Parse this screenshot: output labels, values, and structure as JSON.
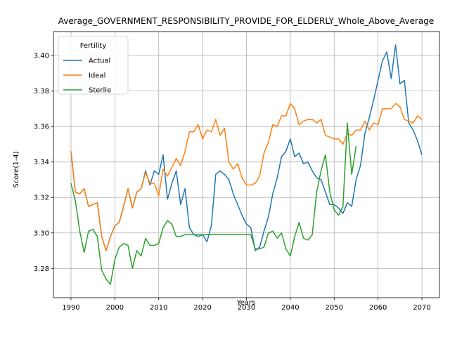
{
  "chart_data": {
    "type": "line",
    "title": "Average_GOVERNMENT_RESPONSIBILITY_PROVIDE_FOR_ELDERLY_Whole_Above_Average",
    "xlabel": "Years",
    "ylabel": "Score(1-4)",
    "xlim": [
      1986,
      2074
    ],
    "ylim": [
      3.2635,
      3.4135
    ],
    "x_ticks": [
      1990,
      2000,
      2010,
      2020,
      2030,
      2040,
      2050,
      2060,
      2070
    ],
    "y_ticks": [
      3.28,
      3.3,
      3.32,
      3.34,
      3.36,
      3.38,
      3.4
    ],
    "y_tick_labels": [
      "3.28",
      "3.30",
      "3.32",
      "3.34",
      "3.36",
      "3.38",
      "3.40"
    ],
    "grid": true,
    "legend": {
      "title": "Fertility",
      "placement": "upper-left"
    },
    "series": [
      {
        "name": "Actual",
        "color": "#1f77b4",
        "x": [
          1990,
          1991,
          1992,
          1993,
          1994,
          1995,
          1996,
          1997,
          1998,
          1999,
          2000,
          2001,
          2002,
          2003,
          2004,
          2005,
          2006,
          2007,
          2008,
          2009,
          2010,
          2011,
          2012,
          2013,
          2014,
          2015,
          2016,
          2017,
          2018,
          2019,
          2020,
          2021,
          2022,
          2023,
          2024,
          2025,
          2026,
          2027,
          2028,
          2029,
          2030,
          2031,
          2032,
          2033,
          2034,
          2035,
          2036,
          2037,
          2038,
          2039,
          2040,
          2041,
          2042,
          2043,
          2044,
          2045,
          2046,
          2047,
          2048,
          2049,
          2050,
          2051,
          2052,
          2053,
          2054,
          2055,
          2056,
          2057,
          2058,
          2059,
          2060,
          2061,
          2062,
          2063,
          2064,
          2065,
          2066,
          2067,
          2068,
          2069,
          2070
        ],
        "values": [
          3.346,
          3.323,
          3.322,
          3.325,
          3.315,
          3.316,
          3.317,
          3.298,
          3.29,
          3.298,
          3.304,
          3.306,
          3.315,
          3.325,
          3.314,
          3.323,
          3.325,
          3.335,
          3.327,
          3.335,
          3.333,
          3.344,
          3.319,
          3.328,
          3.335,
          3.316,
          3.325,
          3.303,
          3.299,
          3.298,
          3.299,
          3.295,
          3.304,
          3.333,
          3.335,
          3.333,
          3.33,
          3.322,
          3.316,
          3.31,
          3.305,
          3.303,
          3.29,
          3.292,
          3.301,
          3.309,
          3.322,
          3.331,
          3.343,
          3.346,
          3.353,
          3.343,
          3.345,
          3.339,
          3.34,
          3.335,
          3.331,
          3.33,
          3.323,
          3.316,
          3.316,
          3.314,
          3.311,
          3.317,
          3.315,
          3.33,
          3.338,
          3.356,
          3.365,
          3.375,
          3.386,
          3.397,
          3.402,
          3.387,
          3.406,
          3.384,
          3.386,
          3.362,
          3.358,
          3.352,
          3.344
        ]
      },
      {
        "name": "Ideal",
        "color": "#ff7f0e",
        "x": [
          1990,
          1991,
          1992,
          1993,
          1994,
          1995,
          1996,
          1997,
          1998,
          1999,
          2000,
          2001,
          2002,
          2003,
          2004,
          2005,
          2006,
          2007,
          2008,
          2009,
          2010,
          2011,
          2012,
          2013,
          2014,
          2015,
          2016,
          2017,
          2018,
          2019,
          2020,
          2021,
          2022,
          2023,
          2024,
          2025,
          2026,
          2027,
          2028,
          2029,
          2030,
          2031,
          2032,
          2033,
          2034,
          2035,
          2036,
          2037,
          2038,
          2039,
          2040,
          2041,
          2042,
          2043,
          2044,
          2045,
          2046,
          2047,
          2048,
          2049,
          2050,
          2051,
          2052,
          2053,
          2054,
          2055,
          2056,
          2057,
          2058,
          2059,
          2060,
          2061,
          2062,
          2063,
          2064,
          2065,
          2066,
          2067,
          2068,
          2069,
          2070
        ],
        "values": [
          3.346,
          3.323,
          3.322,
          3.325,
          3.315,
          3.316,
          3.317,
          3.298,
          3.29,
          3.298,
          3.304,
          3.306,
          3.315,
          3.325,
          3.314,
          3.323,
          3.325,
          3.334,
          3.328,
          3.328,
          3.321,
          3.336,
          3.332,
          3.337,
          3.342,
          3.338,
          3.346,
          3.357,
          3.357,
          3.361,
          3.353,
          3.358,
          3.357,
          3.364,
          3.355,
          3.359,
          3.34,
          3.336,
          3.339,
          3.331,
          3.327,
          3.327,
          3.328,
          3.332,
          3.345,
          3.351,
          3.361,
          3.36,
          3.366,
          3.366,
          3.373,
          3.37,
          3.361,
          3.363,
          3.364,
          3.364,
          3.362,
          3.364,
          3.355,
          3.354,
          3.353,
          3.353,
          3.35,
          3.356,
          3.355,
          3.358,
          3.358,
          3.363,
          3.358,
          3.362,
          3.361,
          3.37,
          3.37,
          3.37,
          3.373,
          3.371,
          3.364,
          3.363,
          3.362,
          3.366,
          3.364
        ]
      },
      {
        "name": "Sterile",
        "color": "#2ca02c",
        "x": [
          1990,
          1991,
          1992,
          1993,
          1994,
          1995,
          1996,
          1997,
          1998,
          1999,
          2000,
          2001,
          2002,
          2003,
          2004,
          2005,
          2006,
          2007,
          2008,
          2009,
          2010,
          2011,
          2012,
          2013,
          2014,
          2015,
          2016,
          2017,
          2018,
          2019,
          2020,
          2021,
          2022,
          2023,
          2024,
          2025,
          2026,
          2027,
          2028,
          2029,
          2030,
          2031,
          2032,
          2033,
          2034,
          2035,
          2036,
          2037,
          2038,
          2039,
          2040,
          2041,
          2042,
          2043,
          2044,
          2045,
          2046,
          2047,
          2048,
          2049,
          2050,
          2051,
          2052,
          2053,
          2054,
          2055
        ],
        "values": [
          3.328,
          3.318,
          3.301,
          3.289,
          3.301,
          3.302,
          3.298,
          3.279,
          3.274,
          3.271,
          3.285,
          3.292,
          3.294,
          3.293,
          3.28,
          3.29,
          3.287,
          3.297,
          3.293,
          3.293,
          3.294,
          3.303,
          3.307,
          3.305,
          3.298,
          3.298,
          3.299,
          3.299,
          3.299,
          3.299,
          3.299,
          3.299,
          3.299,
          3.299,
          3.299,
          3.299,
          3.299,
          3.299,
          3.299,
          3.299,
          3.299,
          3.299,
          3.291,
          3.291,
          3.292,
          3.3,
          3.301,
          3.297,
          3.3,
          3.291,
          3.287,
          3.298,
          3.306,
          3.297,
          3.296,
          3.299,
          3.323,
          3.335,
          3.344,
          3.323,
          3.313,
          3.31,
          3.315,
          3.362,
          3.333,
          3.349
        ]
      }
    ]
  }
}
